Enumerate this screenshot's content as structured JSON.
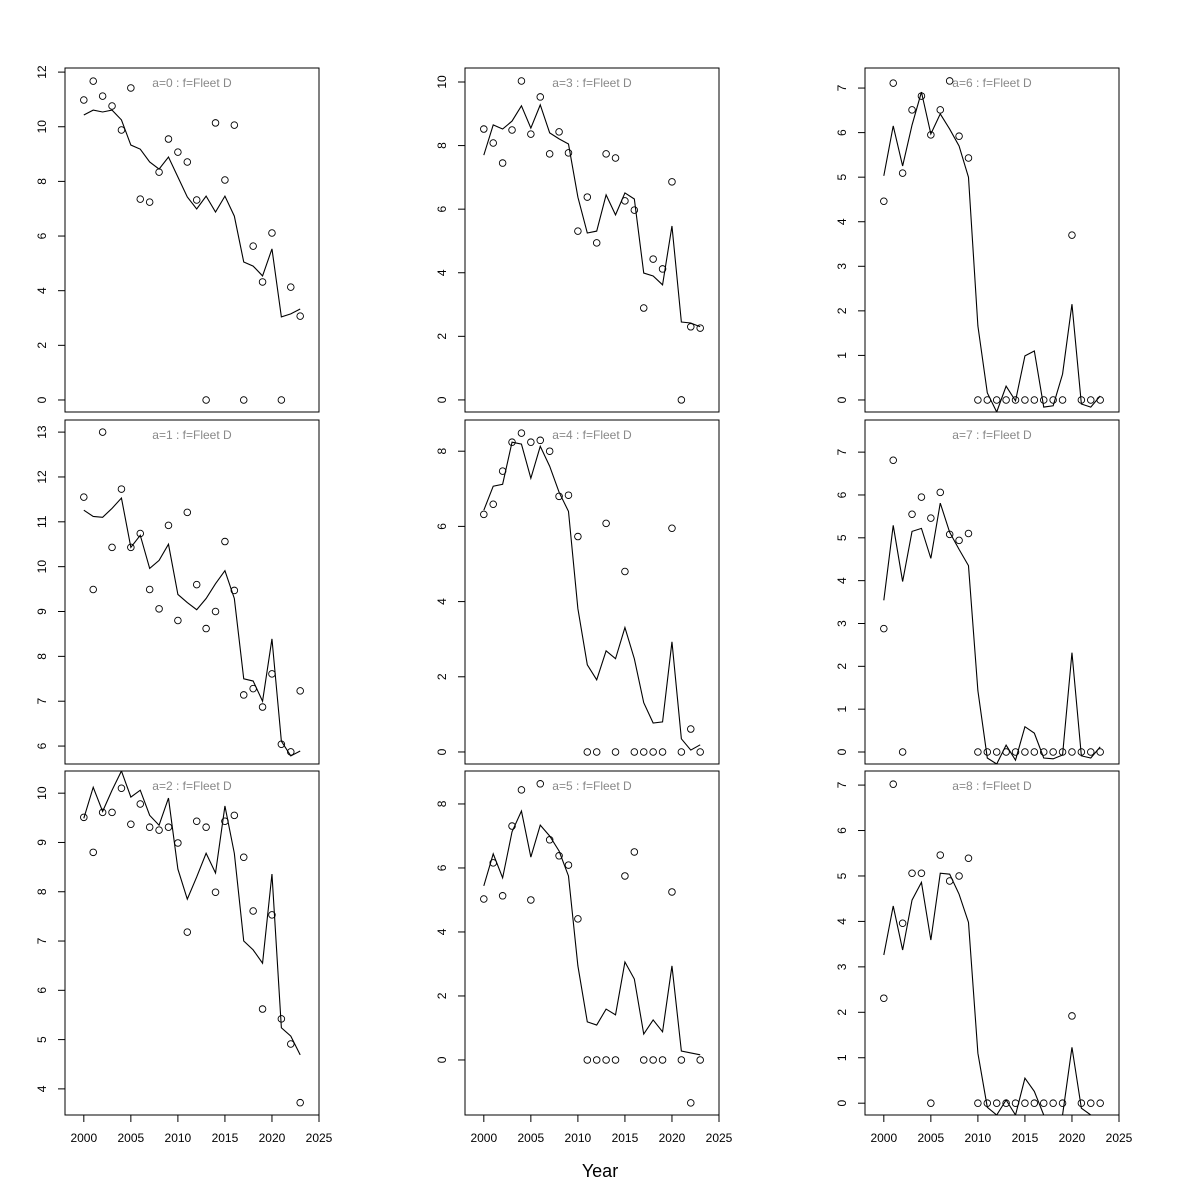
{
  "xlabel": "Year",
  "chart_data": [
    {
      "type": "line",
      "title": "a=0  :  f=Fleet D",
      "x": [
        2000,
        2001,
        2002,
        2003,
        2004,
        2005,
        2006,
        2007,
        2008,
        2009,
        2010,
        2011,
        2012,
        2013,
        2014,
        2015,
        2016,
        2017,
        2018,
        2019,
        2020,
        2021,
        2022,
        2023
      ],
      "xlim": [
        1998,
        2025
      ],
      "ylim": [
        -0.44,
        12.15
      ],
      "yticks": [
        0,
        2,
        4,
        6,
        8,
        10,
        12
      ],
      "series": [
        {
          "style": "line",
          "color": "#000000",
          "values": [
            10.43,
            10.61,
            10.54,
            10.61,
            10.25,
            9.33,
            9.18,
            8.71,
            8.45,
            8.89,
            8.16,
            7.43,
            6.99,
            7.46,
            6.88,
            7.46,
            6.73,
            5.05,
            4.9,
            4.54,
            5.53,
            3.04,
            3.15,
            3.33
          ]
        },
        {
          "style": "points",
          "color": "#000000",
          "values": [
            10.98,
            11.67,
            11.12,
            10.76,
            9.88,
            11.42,
            7.35,
            7.24,
            8.34,
            9.55,
            9.07,
            8.71,
            7.32,
            0,
            10.14,
            8.05,
            10.06,
            0,
            5.63,
            4.32,
            6.11,
            0,
            4.13,
            3.07
          ]
        }
      ]
    },
    {
      "type": "line",
      "title": "a=1  :  f=Fleet D",
      "x": [
        2000,
        2001,
        2002,
        2003,
        2004,
        2005,
        2006,
        2007,
        2008,
        2009,
        2010,
        2011,
        2012,
        2013,
        2014,
        2015,
        2016,
        2017,
        2018,
        2019,
        2020,
        2021,
        2022,
        2023
      ],
      "xlim": [
        1998,
        2025
      ],
      "ylim": [
        5.6,
        13.27
      ],
      "yticks": [
        6,
        7,
        8,
        9,
        10,
        11,
        12,
        13
      ],
      "series": [
        {
          "style": "line",
          "color": "#000000",
          "values": [
            11.26,
            11.12,
            11.1,
            11.3,
            11.53,
            10.43,
            10.7,
            9.96,
            10.14,
            10.5,
            9.38,
            9.2,
            9.04,
            9.29,
            9.62,
            9.91,
            9.29,
            7.5,
            7.45,
            7.0,
            8.39,
            6.11,
            5.78,
            5.89
          ]
        },
        {
          "style": "points",
          "color": "#000000",
          "values": [
            11.55,
            9.49,
            13.0,
            10.43,
            11.73,
            10.43,
            10.74,
            9.49,
            9.06,
            10.92,
            8.8,
            11.21,
            9.6,
            8.62,
            9.0,
            10.56,
            9.47,
            7.14,
            7.28,
            6.87,
            7.61,
            6.04,
            5.87,
            7.23
          ]
        }
      ]
    },
    {
      "type": "line",
      "title": "a=2  :  f=Fleet D",
      "x": [
        2000,
        2001,
        2002,
        2003,
        2004,
        2005,
        2006,
        2007,
        2008,
        2009,
        2010,
        2011,
        2012,
        2013,
        2014,
        2015,
        2016,
        2017,
        2018,
        2019,
        2020,
        2021,
        2022,
        2023
      ],
      "xlim": [
        1998,
        2025
      ],
      "ylim": [
        3.47,
        10.45
      ],
      "yticks": [
        4,
        5,
        6,
        7,
        8,
        9,
        10
      ],
      "xticks": [
        2000,
        2005,
        2010,
        2015,
        2020,
        2025
      ],
      "series": [
        {
          "style": "line",
          "color": "#000000",
          "values": [
            9.49,
            10.12,
            9.63,
            10.06,
            10.45,
            9.92,
            10.06,
            9.55,
            9.35,
            9.9,
            8.46,
            7.85,
            8.3,
            8.78,
            8.38,
            9.74,
            8.78,
            7.0,
            6.82,
            6.55,
            8.36,
            5.24,
            5.07,
            4.69
          ]
        },
        {
          "style": "points",
          "color": "#000000",
          "values": [
            9.51,
            8.8,
            9.61,
            9.61,
            10.1,
            9.37,
            9.78,
            9.31,
            9.25,
            9.31,
            8.99,
            7.18,
            9.43,
            9.31,
            7.99,
            9.43,
            9.55,
            8.7,
            7.61,
            5.62,
            7.53,
            5.42,
            4.91,
            3.72
          ]
        }
      ]
    },
    {
      "type": "line",
      "title": "a=3  :  f=Fleet D",
      "x": [
        2000,
        2001,
        2002,
        2003,
        2004,
        2005,
        2006,
        2007,
        2008,
        2009,
        2010,
        2011,
        2012,
        2013,
        2014,
        2015,
        2016,
        2017,
        2018,
        2019,
        2020,
        2021,
        2022,
        2023
      ],
      "xlim": [
        1998,
        2025
      ],
      "ylim": [
        -0.38,
        10.44
      ],
      "yticks": [
        0,
        2,
        4,
        6,
        8,
        10
      ],
      "series": [
        {
          "style": "line",
          "color": "#000000",
          "values": [
            7.7,
            8.65,
            8.52,
            8.77,
            9.25,
            8.55,
            9.28,
            8.4,
            8.21,
            8.05,
            6.38,
            5.25,
            5.31,
            6.45,
            5.82,
            6.51,
            6.32,
            3.99,
            3.9,
            3.62,
            5.47,
            2.45,
            2.42,
            2.3
          ]
        },
        {
          "style": "points",
          "color": "#000000",
          "values": [
            8.52,
            8.08,
            7.45,
            8.49,
            10.03,
            8.36,
            9.53,
            7.74,
            8.43,
            7.77,
            5.31,
            6.38,
            4.94,
            7.74,
            7.61,
            6.26,
            5.97,
            2.89,
            4.43,
            4.12,
            6.86,
            0,
            2.3,
            2.26
          ]
        }
      ]
    },
    {
      "type": "line",
      "title": "a=4  :  f=Fleet D",
      "x": [
        2000,
        2001,
        2002,
        2003,
        2004,
        2005,
        2006,
        2007,
        2008,
        2009,
        2010,
        2011,
        2012,
        2013,
        2014,
        2015,
        2016,
        2017,
        2018,
        2019,
        2020,
        2021,
        2022,
        2023
      ],
      "xlim": [
        1998,
        2025
      ],
      "ylim": [
        -0.32,
        8.83
      ],
      "yticks": [
        0,
        2,
        4,
        6,
        8
      ],
      "series": [
        {
          "style": "line",
          "color": "#000000",
          "values": [
            6.43,
            7.07,
            7.12,
            8.24,
            8.19,
            7.28,
            8.13,
            7.6,
            6.91,
            6.4,
            3.81,
            2.32,
            1.92,
            2.69,
            2.48,
            3.31,
            2.48,
            1.31,
            0.77,
            0.8,
            2.93,
            0.35,
            0.05,
            0.19
          ]
        },
        {
          "style": "points",
          "color": "#000000",
          "values": [
            6.32,
            6.59,
            7.47,
            8.24,
            8.48,
            8.24,
            8.29,
            8.0,
            6.8,
            6.83,
            5.73,
            0,
            0,
            6.08,
            0,
            4.8,
            0,
            0,
            0,
            0,
            5.95,
            0,
            0.61,
            0
          ]
        }
      ]
    },
    {
      "type": "line",
      "title": "a=5  :  f=Fleet D",
      "x": [
        2000,
        2001,
        2002,
        2003,
        2004,
        2005,
        2006,
        2007,
        2008,
        2009,
        2010,
        2011,
        2012,
        2013,
        2014,
        2015,
        2016,
        2017,
        2018,
        2019,
        2020,
        2021,
        2022,
        2023
      ],
      "xlim": [
        1998,
        2025
      ],
      "ylim": [
        -1.72,
        9.03
      ],
      "yticks": [
        0,
        2,
        4,
        6,
        8
      ],
      "xticks": [
        2000,
        2005,
        2010,
        2015,
        2020,
        2025
      ],
      "series": [
        {
          "style": "line",
          "color": "#000000",
          "values": [
            5.44,
            6.44,
            5.69,
            7.13,
            7.78,
            6.34,
            7.34,
            7.0,
            6.53,
            5.75,
            2.94,
            1.19,
            1.09,
            1.59,
            1.41,
            3.06,
            2.53,
            0.81,
            1.25,
            0.88,
            2.94,
            0.28,
            0.22,
            0.16
          ]
        },
        {
          "style": "points",
          "color": "#000000",
          "values": [
            5.03,
            6.16,
            5.13,
            7.31,
            8.44,
            5.0,
            8.63,
            6.88,
            6.38,
            6.09,
            4.41,
            0,
            0,
            0,
            0,
            5.75,
            6.5,
            0,
            0,
            0,
            5.25,
            0,
            -1.34,
            0
          ]
        }
      ]
    },
    {
      "type": "line",
      "title": "a=6  :  f=Fleet D",
      "x": [
        2000,
        2001,
        2002,
        2003,
        2004,
        2005,
        2006,
        2007,
        2008,
        2009,
        2010,
        2011,
        2012,
        2013,
        2014,
        2015,
        2016,
        2017,
        2018,
        2019,
        2020,
        2021,
        2022,
        2023
      ],
      "xlim": [
        1998,
        2025
      ],
      "ylim": [
        -0.27,
        7.45
      ],
      "yticks": [
        0,
        1,
        2,
        3,
        4,
        5,
        6,
        7
      ],
      "series": [
        {
          "style": "line",
          "color": "#000000",
          "values": [
            5.03,
            6.15,
            5.25,
            6.17,
            6.91,
            5.97,
            6.42,
            6.08,
            5.7,
            5.0,
            1.66,
            0.16,
            -0.27,
            0.31,
            -0.02,
            0.99,
            1.1,
            -0.16,
            -0.13,
            0.58,
            2.15,
            -0.09,
            -0.16,
            0.09
          ]
        },
        {
          "style": "points",
          "color": "#000000",
          "values": [
            4.46,
            7.11,
            5.09,
            6.51,
            6.82,
            5.95,
            6.51,
            7.16,
            5.92,
            5.43,
            0,
            0,
            0,
            0,
            0,
            0,
            0,
            0,
            0,
            0,
            3.7,
            0,
            0,
            0
          ]
        }
      ]
    },
    {
      "type": "line",
      "title": "a=7  :  f=Fleet D",
      "x": [
        2000,
        2001,
        2002,
        2003,
        2004,
        2005,
        2006,
        2007,
        2008,
        2009,
        2010,
        2011,
        2012,
        2013,
        2014,
        2015,
        2016,
        2017,
        2018,
        2019,
        2020,
        2021,
        2022,
        2023
      ],
      "xlim": [
        1998,
        2025
      ],
      "ylim": [
        -0.28,
        7.75
      ],
      "yticks": [
        0,
        1,
        2,
        3,
        4,
        5,
        6,
        7
      ],
      "series": [
        {
          "style": "line",
          "color": "#000000",
          "values": [
            3.54,
            5.29,
            3.98,
            5.15,
            5.22,
            4.52,
            5.81,
            5.13,
            4.73,
            4.35,
            1.43,
            -0.14,
            -0.28,
            0.16,
            -0.19,
            0.59,
            0.44,
            -0.14,
            -0.16,
            -0.07,
            2.32,
            -0.09,
            -0.14,
            0.12
          ]
        },
        {
          "style": "points",
          "color": "#000000",
          "values": [
            2.88,
            6.81,
            0,
            5.55,
            5.95,
            5.46,
            6.06,
            5.08,
            4.94,
            5.1,
            0,
            0,
            0,
            0,
            0,
            0,
            0,
            0,
            0,
            0,
            0,
            0,
            0,
            0
          ]
        }
      ]
    },
    {
      "type": "line",
      "title": "a=8  :  f=Fleet D",
      "x": [
        2000,
        2001,
        2002,
        2003,
        2004,
        2005,
        2006,
        2007,
        2008,
        2009,
        2010,
        2011,
        2012,
        2013,
        2014,
        2015,
        2016,
        2017,
        2018,
        2019,
        2020,
        2021,
        2022,
        2023
      ],
      "xlim": [
        1998,
        2025
      ],
      "ylim": [
        -0.26,
        7.31
      ],
      "yticks": [
        0,
        1,
        2,
        3,
        4,
        5,
        6,
        7
      ],
      "xticks": [
        2000,
        2005,
        2010,
        2015,
        2020,
        2025
      ],
      "series": [
        {
          "style": "line",
          "color": "#000000",
          "values": [
            3.26,
            4.34,
            3.37,
            4.47,
            4.86,
            3.59,
            5.06,
            5.04,
            4.6,
            3.98,
            1.1,
            -0.09,
            -0.26,
            0.07,
            -0.26,
            0.55,
            0.26,
            -0.26,
            -0.26,
            -0.26,
            1.23,
            -0.11,
            -0.26,
            -0.26
          ]
        },
        {
          "style": "points",
          "color": "#000000",
          "values": [
            2.31,
            7.02,
            3.96,
            5.06,
            5.06,
            0,
            5.46,
            4.89,
            5.0,
            5.39,
            0,
            0,
            0,
            0,
            0,
            0,
            0,
            0,
            0,
            0,
            1.92,
            0,
            0,
            0
          ]
        }
      ]
    }
  ]
}
